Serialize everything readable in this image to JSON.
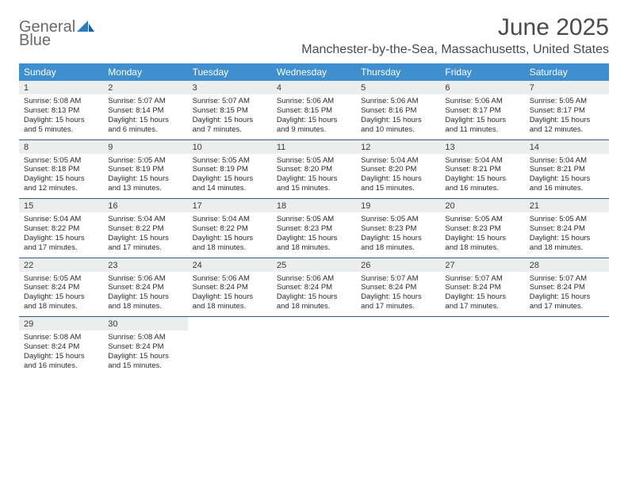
{
  "brand": {
    "part1": "General",
    "part2": "Blue"
  },
  "title": {
    "month": "June 2025",
    "location": "Manchester-by-the-Sea, Massachusetts, United States"
  },
  "colors": {
    "header_bg": "#3f8fcf",
    "header_fg": "#ffffff",
    "daynum_bg": "#eceded",
    "rule": "#2e5e88",
    "text": "#2b2b2b",
    "brand_gray": "#6a6a6a",
    "brand_blue": "#2f7bc2"
  },
  "dayNames": [
    "Sunday",
    "Monday",
    "Tuesday",
    "Wednesday",
    "Thursday",
    "Friday",
    "Saturday"
  ],
  "weeks": [
    [
      {
        "n": "1",
        "sr": "5:08 AM",
        "ss": "8:13 PM",
        "dl": "15 hours and 5 minutes."
      },
      {
        "n": "2",
        "sr": "5:07 AM",
        "ss": "8:14 PM",
        "dl": "15 hours and 6 minutes."
      },
      {
        "n": "3",
        "sr": "5:07 AM",
        "ss": "8:15 PM",
        "dl": "15 hours and 7 minutes."
      },
      {
        "n": "4",
        "sr": "5:06 AM",
        "ss": "8:15 PM",
        "dl": "15 hours and 9 minutes."
      },
      {
        "n": "5",
        "sr": "5:06 AM",
        "ss": "8:16 PM",
        "dl": "15 hours and 10 minutes."
      },
      {
        "n": "6",
        "sr": "5:06 AM",
        "ss": "8:17 PM",
        "dl": "15 hours and 11 minutes."
      },
      {
        "n": "7",
        "sr": "5:05 AM",
        "ss": "8:17 PM",
        "dl": "15 hours and 12 minutes."
      }
    ],
    [
      {
        "n": "8",
        "sr": "5:05 AM",
        "ss": "8:18 PM",
        "dl": "15 hours and 12 minutes."
      },
      {
        "n": "9",
        "sr": "5:05 AM",
        "ss": "8:19 PM",
        "dl": "15 hours and 13 minutes."
      },
      {
        "n": "10",
        "sr": "5:05 AM",
        "ss": "8:19 PM",
        "dl": "15 hours and 14 minutes."
      },
      {
        "n": "11",
        "sr": "5:05 AM",
        "ss": "8:20 PM",
        "dl": "15 hours and 15 minutes."
      },
      {
        "n": "12",
        "sr": "5:04 AM",
        "ss": "8:20 PM",
        "dl": "15 hours and 15 minutes."
      },
      {
        "n": "13",
        "sr": "5:04 AM",
        "ss": "8:21 PM",
        "dl": "15 hours and 16 minutes."
      },
      {
        "n": "14",
        "sr": "5:04 AM",
        "ss": "8:21 PM",
        "dl": "15 hours and 16 minutes."
      }
    ],
    [
      {
        "n": "15",
        "sr": "5:04 AM",
        "ss": "8:22 PM",
        "dl": "15 hours and 17 minutes."
      },
      {
        "n": "16",
        "sr": "5:04 AM",
        "ss": "8:22 PM",
        "dl": "15 hours and 17 minutes."
      },
      {
        "n": "17",
        "sr": "5:04 AM",
        "ss": "8:22 PM",
        "dl": "15 hours and 18 minutes."
      },
      {
        "n": "18",
        "sr": "5:05 AM",
        "ss": "8:23 PM",
        "dl": "15 hours and 18 minutes."
      },
      {
        "n": "19",
        "sr": "5:05 AM",
        "ss": "8:23 PM",
        "dl": "15 hours and 18 minutes."
      },
      {
        "n": "20",
        "sr": "5:05 AM",
        "ss": "8:23 PM",
        "dl": "15 hours and 18 minutes."
      },
      {
        "n": "21",
        "sr": "5:05 AM",
        "ss": "8:24 PM",
        "dl": "15 hours and 18 minutes."
      }
    ],
    [
      {
        "n": "22",
        "sr": "5:05 AM",
        "ss": "8:24 PM",
        "dl": "15 hours and 18 minutes."
      },
      {
        "n": "23",
        "sr": "5:06 AM",
        "ss": "8:24 PM",
        "dl": "15 hours and 18 minutes."
      },
      {
        "n": "24",
        "sr": "5:06 AM",
        "ss": "8:24 PM",
        "dl": "15 hours and 18 minutes."
      },
      {
        "n": "25",
        "sr": "5:06 AM",
        "ss": "8:24 PM",
        "dl": "15 hours and 18 minutes."
      },
      {
        "n": "26",
        "sr": "5:07 AM",
        "ss": "8:24 PM",
        "dl": "15 hours and 17 minutes."
      },
      {
        "n": "27",
        "sr": "5:07 AM",
        "ss": "8:24 PM",
        "dl": "15 hours and 17 minutes."
      },
      {
        "n": "28",
        "sr": "5:07 AM",
        "ss": "8:24 PM",
        "dl": "15 hours and 17 minutes."
      }
    ],
    [
      {
        "n": "29",
        "sr": "5:08 AM",
        "ss": "8:24 PM",
        "dl": "15 hours and 16 minutes."
      },
      {
        "n": "30",
        "sr": "5:08 AM",
        "ss": "8:24 PM",
        "dl": "15 hours and 15 minutes."
      },
      null,
      null,
      null,
      null,
      null
    ]
  ],
  "labels": {
    "sunrise": "Sunrise:",
    "sunset": "Sunset:",
    "daylight": "Daylight:"
  }
}
